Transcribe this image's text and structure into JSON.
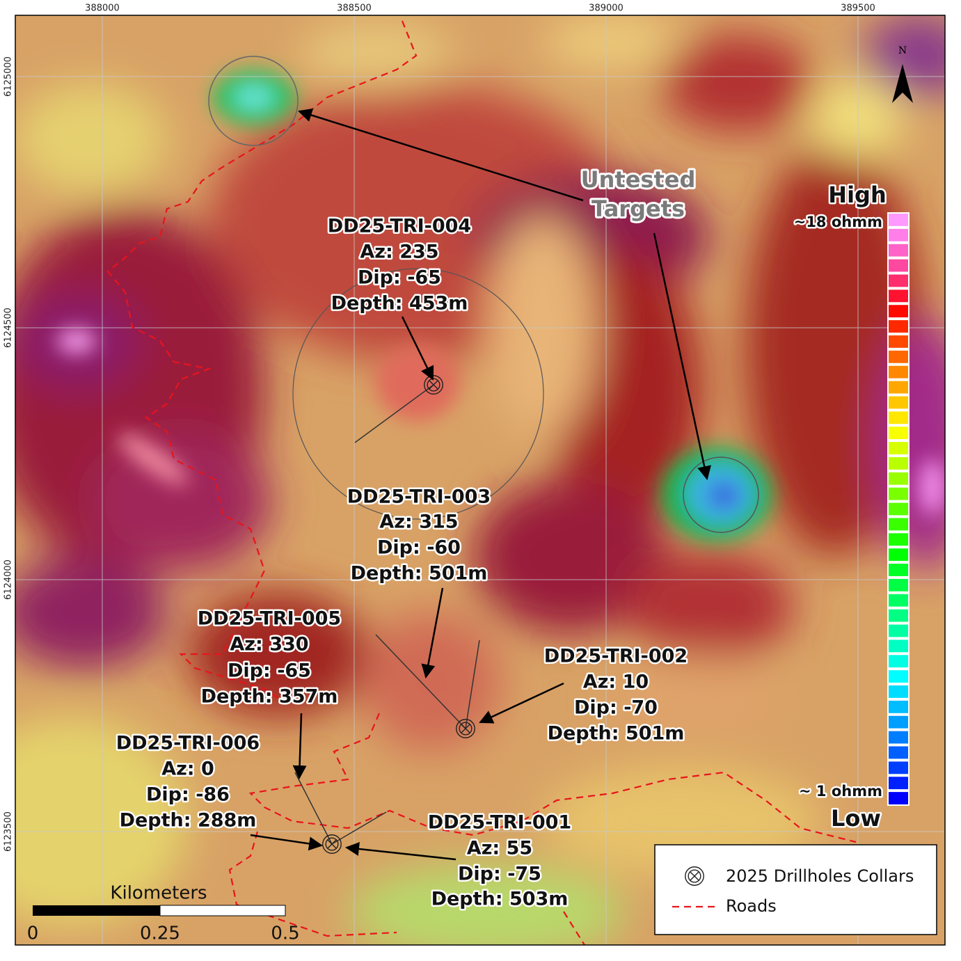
{
  "grid": {
    "x_labels": [
      "388000",
      "388500",
      "389000",
      "389500"
    ],
    "y_labels": [
      "6125000",
      "6124500",
      "6124000",
      "6123500"
    ]
  },
  "north": "N",
  "annotation": {
    "lines": [
      "Untested",
      "Targets"
    ]
  },
  "drillholes": [
    {
      "lines": [
        "DD25-TRI-004",
        "Az: 235",
        "Dip: -65",
        "Depth: 453m"
      ]
    },
    {
      "lines": [
        "DD25-TRI-003",
        "Az: 315",
        "Dip: -60",
        "Depth: 501m"
      ]
    },
    {
      "lines": [
        "DD25-TRI-005",
        "Az: 330",
        "Dip: -65",
        "Depth: 357m"
      ]
    },
    {
      "lines": [
        "DD25-TRI-002",
        "Az: 10",
        "Dip: -70",
        "Depth: 501m"
      ]
    },
    {
      "lines": [
        "DD25-TRI-006",
        "Az: 0",
        "Dip: -86",
        "Depth: 288m"
      ]
    },
    {
      "lines": [
        "DD25-TRI-001",
        "Az: 55",
        "Dip: -75",
        "Depth: 503m"
      ]
    }
  ],
  "color_scale": {
    "top": "High",
    "top_value": "~18 ohmm",
    "bottom_value": "~ 1 ohmm",
    "bottom": "Low"
  },
  "legend": {
    "collars": "2025 Drillholes Collars",
    "roads": "Roads"
  },
  "scale_bar": {
    "title": "Kilometers",
    "labels": [
      "0",
      "0.25",
      "0.5"
    ]
  }
}
